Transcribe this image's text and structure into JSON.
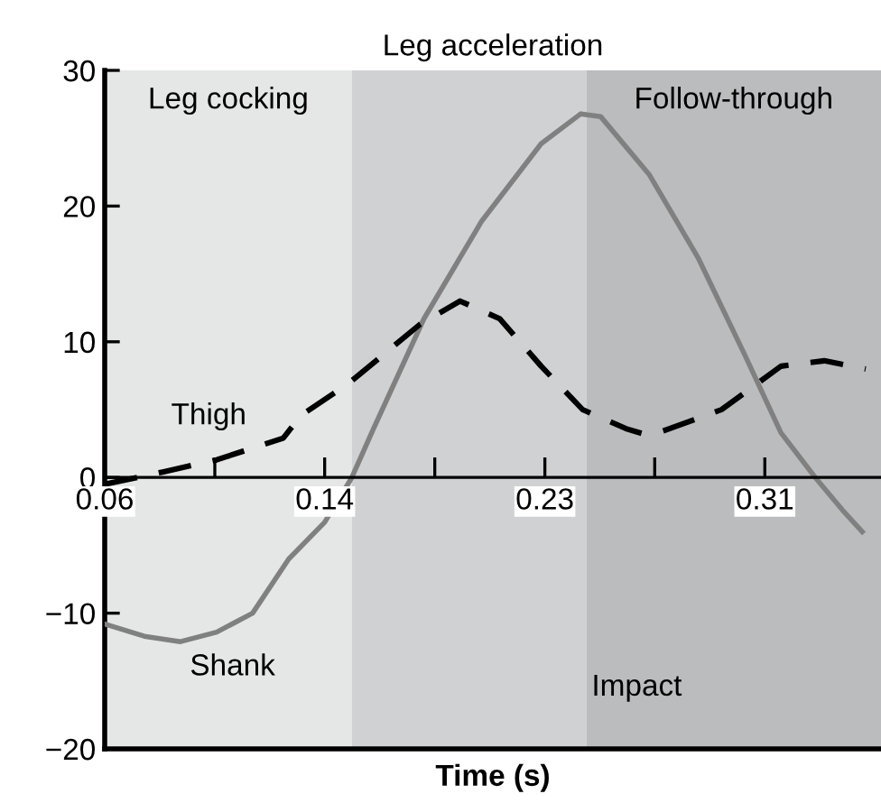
{
  "chart_data": {
    "type": "line",
    "title": "Leg acceleration",
    "xlabel": "Time (s)",
    "xlim": [
      0.06,
      0.354
    ],
    "ylim": [
      -20,
      30
    ],
    "yticks": [
      {
        "value": -20,
        "label": "−20"
      },
      {
        "value": -10,
        "label": "−10"
      },
      0,
      10,
      20,
      30
    ],
    "xticks": [
      {
        "value": 0.06,
        "label": "0.06"
      },
      {
        "value": 0.1017,
        "label": null
      },
      {
        "value": 0.1433,
        "label": "0.14"
      },
      {
        "value": 0.185,
        "label": null
      },
      {
        "value": 0.2267,
        "label": "0.23"
      },
      {
        "value": 0.2683,
        "label": null
      },
      {
        "value": 0.31,
        "label": "0.31"
      }
    ],
    "series": [
      {
        "name": "Shank",
        "color": "#808080",
        "line_style": "solid",
        "x": [
          0.06,
          0.075,
          0.0887,
          0.1024,
          0.116,
          0.1297,
          0.1433,
          0.1536,
          0.1618,
          0.1809,
          0.2028,
          0.2253,
          0.2403,
          0.2478,
          0.2663,
          0.2847,
          0.3025,
          0.3161,
          0.3291,
          0.3394,
          0.3469
        ],
        "values": [
          -10.8,
          -11.7,
          -12.1,
          -11.4,
          -10.0,
          -6.0,
          -3.3,
          0,
          3.6,
          11.7,
          18.9,
          24.6,
          26.8,
          26.6,
          22.3,
          16.2,
          9.0,
          3.3,
          0,
          -2.4,
          -4.0
        ]
      },
      {
        "name": "Thigh",
        "color": "#000000",
        "line_style": "dashed",
        "x": [
          0.06,
          0.0819,
          0.1024,
          0.1276,
          0.1345,
          0.1522,
          0.1795,
          0.1946,
          0.2096,
          0.2253,
          0.241,
          0.2574,
          0.2642,
          0.2711,
          0.2936,
          0.3161,
          0.3325,
          0.3482
        ],
        "values": [
          -0.5,
          0.4,
          1.3,
          2.9,
          4.6,
          6.9,
          11.3,
          13.0,
          11.7,
          8.2,
          5.0,
          3.6,
          3.2,
          3.4,
          5.0,
          8.2,
          8.6,
          8.0
        ]
      }
    ],
    "bands": [
      {
        "axis": "x",
        "from": 0.06,
        "to": 0.1536,
        "label": "Leg cocking",
        "color": "#e5e6e6"
      },
      {
        "axis": "x",
        "from": 0.1536,
        "to": 0.2424,
        "color": "#d0d1d3"
      },
      {
        "axis": "x",
        "from": 0.2424,
        "to": 0.354,
        "label": "Follow-through",
        "color": "#bbbcbe"
      }
    ],
    "annotations": [
      "Impact"
    ],
    "grid": false,
    "legend": false
  }
}
